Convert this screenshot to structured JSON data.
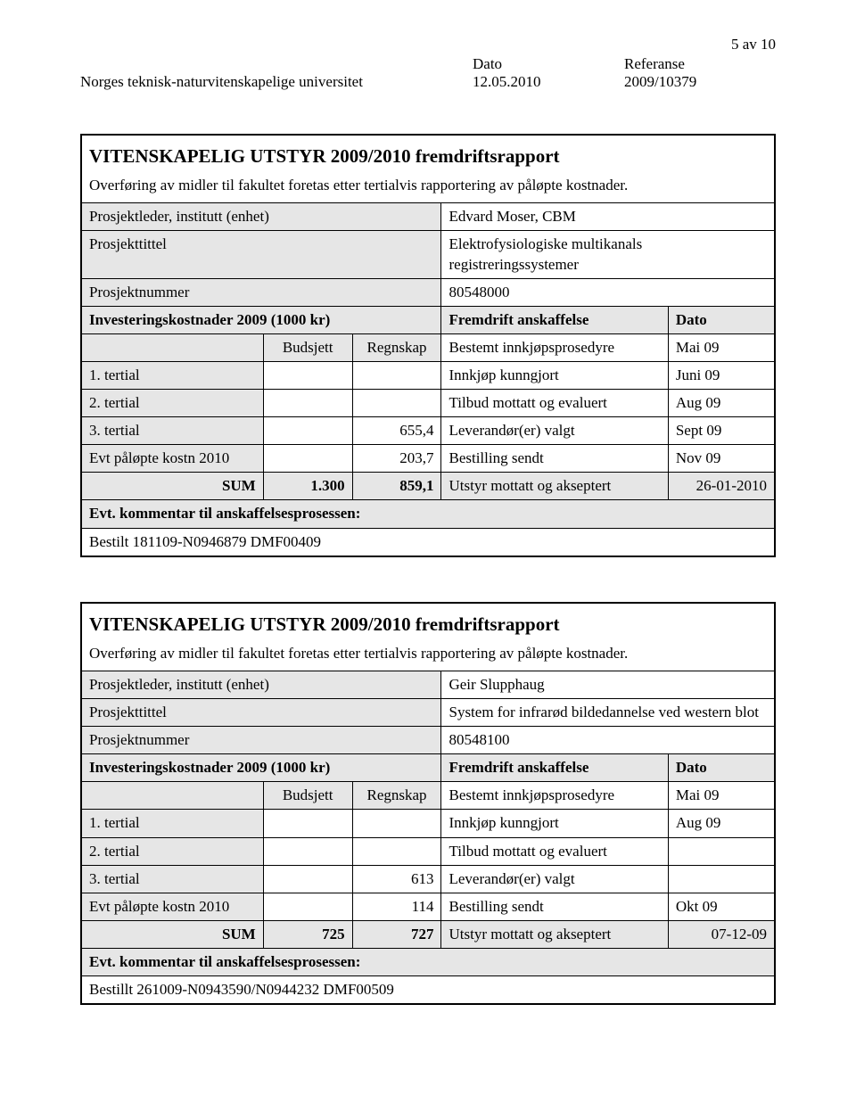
{
  "header": {
    "page_number": "5 av 10",
    "date_label": "Dato",
    "ref_label": "Referanse",
    "org": "Norges teknisk-naturvitenskapelige universitet",
    "date_value": "12.05.2010",
    "ref_value": "2009/10379"
  },
  "report_common": {
    "main_title": "VITENSKAPELIG UTSTYR 2009/2010 fremdriftsrapport",
    "subtitle": "Overføring av midler til fakultet foretas etter tertialvis rapportering av påløpte kostnader.",
    "leader_label": "Prosjektleder, institutt (enhet)",
    "title_label": "Prosjekttittel",
    "number_label": "Prosjektnummer",
    "invest_label": "Investeringskostnader 2009 (1000 kr)",
    "fremdrift_label": "Fremdrift anskaffelse",
    "dato_label": "Dato",
    "budsjett_label": "Budsjett",
    "regnskap_label": "Regnskap",
    "bestemt": "Bestemt innkjøpsprosedyre",
    "innkjop": "Innkjøp kunngjort",
    "tilbud": "Tilbud mottatt og evaluert",
    "leverandor": "Leverandør(er) valgt",
    "bestilling": "Bestilling sendt",
    "utstyr": "Utstyr mottatt og akseptert",
    "tertial1": "1. tertial",
    "tertial2": "2. tertial",
    "tertial3": "3. tertial",
    "evt_kostn": "Evt påløpte kostn 2010",
    "sum": "SUM",
    "evt_kommentar": "Evt. kommentar til anskaffelsesprosessen:"
  },
  "report1": {
    "leader": "Edvard Moser, CBM",
    "project_title": "Elektrofysiologiske multikanals registreringssystemer",
    "project_number": "80548000",
    "bestemt_date": "Mai 09",
    "innkjop_date": "Juni 09",
    "tilbud_date": "Aug 09",
    "leverandor_date": "Sept 09",
    "bestilling_date": "Nov 09",
    "utstyr_date": "26-01-2010",
    "tertial3_regnskap": "655,4",
    "evt_kostn_regnskap": "203,7",
    "sum_budsjett": "1.300",
    "sum_regnskap": "859,1",
    "comment": "Bestilt 181109-N0946879 DMF00409"
  },
  "report2": {
    "leader": "Geir Slupphaug",
    "project_title": "System for infrarød bildedannelse ved western blot",
    "project_number": "80548100",
    "bestemt_date": "Mai 09",
    "innkjop_date": "Aug 09",
    "tilbud_date": "",
    "leverandor_date": "",
    "bestilling_date": "Okt 09",
    "utstyr_date": "07-12-09",
    "tertial3_regnskap": "613",
    "evt_kostn_regnskap": "114",
    "sum_budsjett": "725",
    "sum_regnskap": "727",
    "comment": "Bestillt 261009-N0943590/N0944232 DMF00509"
  }
}
